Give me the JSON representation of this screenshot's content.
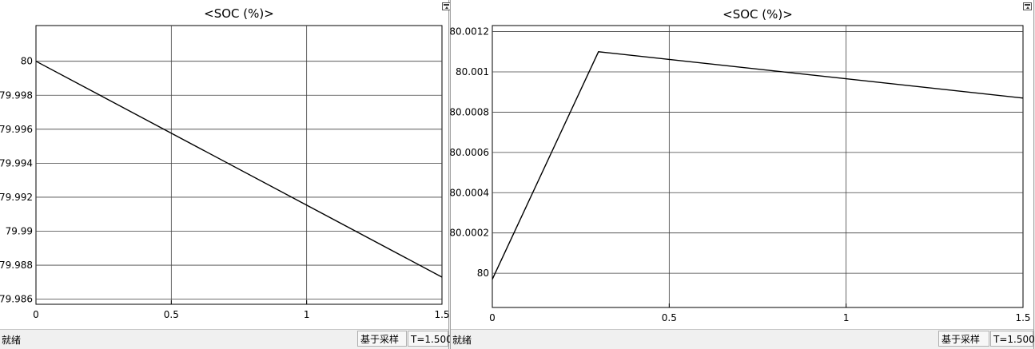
{
  "chart_data": [
    {
      "type": "line",
      "title": "<SOC (%)>",
      "xlabel": "",
      "ylabel": "",
      "xlim": [
        0,
        1.5
      ],
      "ylim": [
        79.9857,
        80.0021
      ],
      "x_ticks": [
        0,
        0.5,
        1,
        1.5
      ],
      "x_tick_labels": [
        "0",
        "0.5",
        "1",
        "1.5"
      ],
      "y_ticks": [
        79.986,
        79.988,
        79.99,
        79.992,
        79.994,
        79.996,
        79.998,
        80
      ],
      "y_tick_labels": [
        "79.986",
        "79.988",
        "79.99",
        "79.992",
        "79.994",
        "79.996",
        "79.998",
        "80"
      ],
      "grid": true,
      "legend": "none",
      "series": [
        {
          "x": [
            0,
            1.5
          ],
          "y": [
            80.0,
            79.9873
          ]
        }
      ]
    },
    {
      "type": "line",
      "title": "<SOC (%)>",
      "xlabel": "",
      "ylabel": "",
      "xlim": [
        0,
        1.5
      ],
      "ylim": [
        79.99983,
        80.00123
      ],
      "x_ticks": [
        0,
        0.5,
        1,
        1.5
      ],
      "x_tick_labels": [
        "0",
        "0.5",
        "1",
        "1.5"
      ],
      "y_ticks": [
        80,
        80.0002,
        80.0004,
        80.0006,
        80.0008,
        80.001,
        80.0012
      ],
      "y_tick_labels": [
        "80",
        "80.0002",
        "80.0004",
        "80.0006",
        "80.0008",
        "80.001",
        "80.0012"
      ],
      "grid": true,
      "legend": "none",
      "series": [
        {
          "x": [
            0,
            0.3,
            1.5
          ],
          "y": [
            79.99997,
            80.0011,
            80.00087
          ]
        }
      ]
    }
  ],
  "left_window": {
    "status": "就绪",
    "sampling_label": "基于采样",
    "time_label": "T=1.500"
  },
  "right_window": {
    "status": "就绪",
    "sampling_label": "基于采样",
    "time_label": "T=1.500"
  },
  "colors": {
    "line": "#000000",
    "grid": "#404040",
    "axes_bg": "#ffffff",
    "window_bg": "#f0f0f0"
  }
}
